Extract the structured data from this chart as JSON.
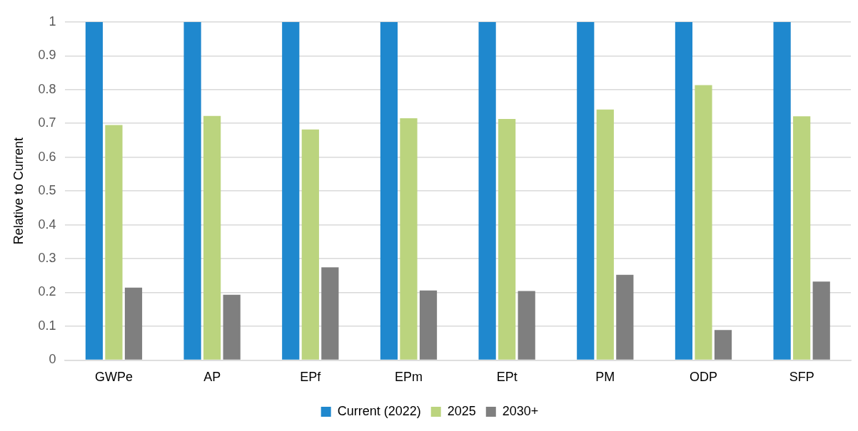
{
  "chart_data": {
    "type": "bar",
    "ylabel": "Relative to Current",
    "categories": [
      "GWPe",
      "AP",
      "EPf",
      "EPm",
      "EPt",
      "PM",
      "ODP",
      "SFP"
    ],
    "series": [
      {
        "name": "Current (2022)",
        "color": "#1f88ce",
        "values": [
          1,
          1,
          1,
          1,
          1,
          1,
          1,
          1
        ]
      },
      {
        "name": "2025",
        "color": "#bbd47e",
        "values": [
          0.695,
          0.722,
          0.682,
          0.715,
          0.713,
          0.741,
          0.813,
          0.721
        ]
      },
      {
        "name": "2030+",
        "color": "#7f7f7f",
        "values": [
          0.214,
          0.193,
          0.274,
          0.206,
          0.204,
          0.252,
          0.089,
          0.232
        ]
      }
    ],
    "ylim": [
      0,
      1
    ],
    "yticks": [
      0,
      0.1,
      0.2,
      0.3,
      0.4,
      0.5,
      0.6,
      0.7,
      0.8,
      0.9,
      1
    ],
    "grid": "y",
    "legend": "bottom"
  }
}
